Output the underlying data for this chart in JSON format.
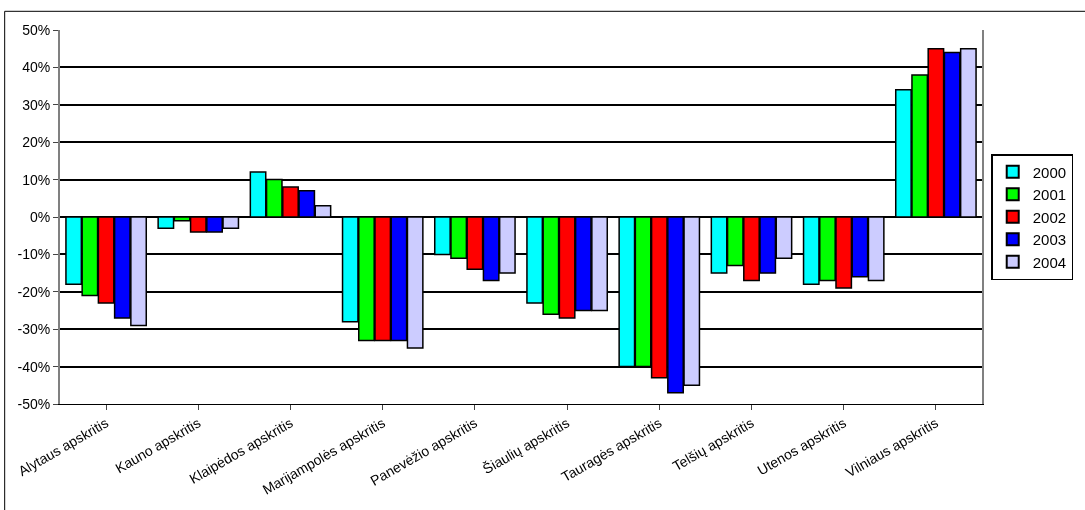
{
  "chart_data": {
    "type": "bar",
    "categories": [
      "Alytaus apskritis",
      "Kauno apskritis",
      "Klaipėdos apskritis",
      "Marijampolės apskritis",
      "Panevėžio apskritis",
      "Šiaulių apskritis",
      "Tauragės apskritis",
      "Telšių apskritis",
      "Utenos apskritis",
      "Vilniaus apskritis"
    ],
    "series": [
      {
        "name": "2000",
        "color": "#00ffff",
        "values": [
          -18,
          -3,
          12,
          -28,
          -10,
          -23,
          -40,
          -15,
          -18,
          34
        ]
      },
      {
        "name": "2001",
        "color": "#00ff00",
        "values": [
          -21,
          -1,
          10,
          -33,
          -11,
          -26,
          -40,
          -13,
          -17,
          38
        ]
      },
      {
        "name": "2002",
        "color": "#ff0000",
        "values": [
          -23,
          -4,
          8,
          -33,
          -14,
          -27,
          -43,
          -17,
          -19,
          45
        ]
      },
      {
        "name": "2003",
        "color": "#0000ff",
        "values": [
          -27,
          -4,
          7,
          -33,
          -17,
          -25,
          -47,
          -15,
          -16,
          44
        ]
      },
      {
        "name": "2004",
        "color": "#ccccff",
        "values": [
          -29,
          -3,
          3,
          -35,
          -15,
          -25,
          -45,
          -11,
          -17,
          45
        ]
      }
    ],
    "ylim": [
      -50,
      50
    ],
    "yticks": [
      {
        "value": -50,
        "label": "-50%"
      },
      {
        "value": -40,
        "label": "-40%"
      },
      {
        "value": -30,
        "label": "-30%"
      },
      {
        "value": -20,
        "label": "-20%"
      },
      {
        "value": -10,
        "label": "-10%"
      },
      {
        "value": 0,
        "label": "0%"
      },
      {
        "value": 10,
        "label": "10%"
      },
      {
        "value": 20,
        "label": "20%"
      },
      {
        "value": 30,
        "label": "30%"
      },
      {
        "value": 40,
        "label": "40%"
      },
      {
        "value": 50,
        "label": "50%"
      }
    ],
    "grid": "y",
    "legend": "right"
  }
}
